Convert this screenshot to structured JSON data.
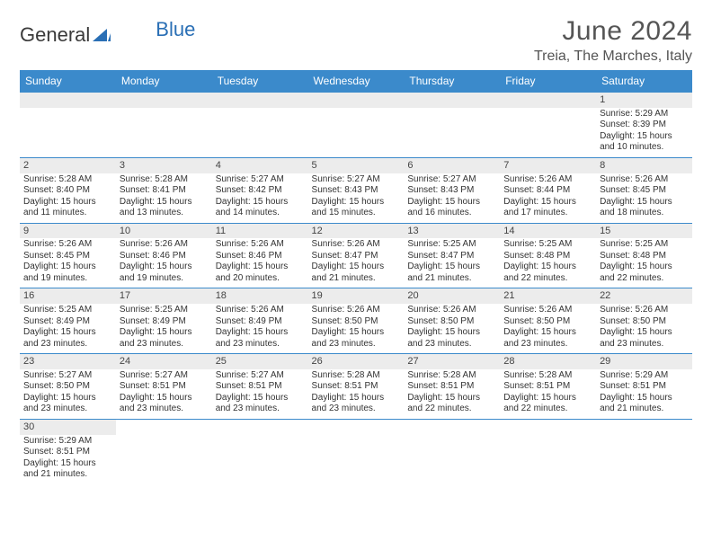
{
  "brand": {
    "general": "General",
    "blue": "Blue"
  },
  "title": "June 2024",
  "location": "Treia, The Marches, Italy",
  "colors": {
    "header_bg": "#3b8acb",
    "header_text": "#ffffff",
    "daynum_bg": "#ececec",
    "text": "#333333",
    "brand_gray": "#3a3a3a",
    "brand_blue": "#2a6fb5"
  },
  "weekdays": [
    "Sunday",
    "Monday",
    "Tuesday",
    "Wednesday",
    "Thursday",
    "Friday",
    "Saturday"
  ],
  "weeks": [
    [
      null,
      null,
      null,
      null,
      null,
      null,
      {
        "n": "1",
        "rise": "5:29 AM",
        "set": "8:39 PM",
        "dl": "15 hours and 10 minutes."
      }
    ],
    [
      {
        "n": "2",
        "rise": "5:28 AM",
        "set": "8:40 PM",
        "dl": "15 hours and 11 minutes."
      },
      {
        "n": "3",
        "rise": "5:28 AM",
        "set": "8:41 PM",
        "dl": "15 hours and 13 minutes."
      },
      {
        "n": "4",
        "rise": "5:27 AM",
        "set": "8:42 PM",
        "dl": "15 hours and 14 minutes."
      },
      {
        "n": "5",
        "rise": "5:27 AM",
        "set": "8:43 PM",
        "dl": "15 hours and 15 minutes."
      },
      {
        "n": "6",
        "rise": "5:27 AM",
        "set": "8:43 PM",
        "dl": "15 hours and 16 minutes."
      },
      {
        "n": "7",
        "rise": "5:26 AM",
        "set": "8:44 PM",
        "dl": "15 hours and 17 minutes."
      },
      {
        "n": "8",
        "rise": "5:26 AM",
        "set": "8:45 PM",
        "dl": "15 hours and 18 minutes."
      }
    ],
    [
      {
        "n": "9",
        "rise": "5:26 AM",
        "set": "8:45 PM",
        "dl": "15 hours and 19 minutes."
      },
      {
        "n": "10",
        "rise": "5:26 AM",
        "set": "8:46 PM",
        "dl": "15 hours and 19 minutes."
      },
      {
        "n": "11",
        "rise": "5:26 AM",
        "set": "8:46 PM",
        "dl": "15 hours and 20 minutes."
      },
      {
        "n": "12",
        "rise": "5:26 AM",
        "set": "8:47 PM",
        "dl": "15 hours and 21 minutes."
      },
      {
        "n": "13",
        "rise": "5:25 AM",
        "set": "8:47 PM",
        "dl": "15 hours and 21 minutes."
      },
      {
        "n": "14",
        "rise": "5:25 AM",
        "set": "8:48 PM",
        "dl": "15 hours and 22 minutes."
      },
      {
        "n": "15",
        "rise": "5:25 AM",
        "set": "8:48 PM",
        "dl": "15 hours and 22 minutes."
      }
    ],
    [
      {
        "n": "16",
        "rise": "5:25 AM",
        "set": "8:49 PM",
        "dl": "15 hours and 23 minutes."
      },
      {
        "n": "17",
        "rise": "5:25 AM",
        "set": "8:49 PM",
        "dl": "15 hours and 23 minutes."
      },
      {
        "n": "18",
        "rise": "5:26 AM",
        "set": "8:49 PM",
        "dl": "15 hours and 23 minutes."
      },
      {
        "n": "19",
        "rise": "5:26 AM",
        "set": "8:50 PM",
        "dl": "15 hours and 23 minutes."
      },
      {
        "n": "20",
        "rise": "5:26 AM",
        "set": "8:50 PM",
        "dl": "15 hours and 23 minutes."
      },
      {
        "n": "21",
        "rise": "5:26 AM",
        "set": "8:50 PM",
        "dl": "15 hours and 23 minutes."
      },
      {
        "n": "22",
        "rise": "5:26 AM",
        "set": "8:50 PM",
        "dl": "15 hours and 23 minutes."
      }
    ],
    [
      {
        "n": "23",
        "rise": "5:27 AM",
        "set": "8:50 PM",
        "dl": "15 hours and 23 minutes."
      },
      {
        "n": "24",
        "rise": "5:27 AM",
        "set": "8:51 PM",
        "dl": "15 hours and 23 minutes."
      },
      {
        "n": "25",
        "rise": "5:27 AM",
        "set": "8:51 PM",
        "dl": "15 hours and 23 minutes."
      },
      {
        "n": "26",
        "rise": "5:28 AM",
        "set": "8:51 PM",
        "dl": "15 hours and 23 minutes."
      },
      {
        "n": "27",
        "rise": "5:28 AM",
        "set": "8:51 PM",
        "dl": "15 hours and 22 minutes."
      },
      {
        "n": "28",
        "rise": "5:28 AM",
        "set": "8:51 PM",
        "dl": "15 hours and 22 minutes."
      },
      {
        "n": "29",
        "rise": "5:29 AM",
        "set": "8:51 PM",
        "dl": "15 hours and 21 minutes."
      }
    ],
    [
      {
        "n": "30",
        "rise": "5:29 AM",
        "set": "8:51 PM",
        "dl": "15 hours and 21 minutes."
      },
      null,
      null,
      null,
      null,
      null,
      null
    ]
  ],
  "labels": {
    "sunrise": "Sunrise:",
    "sunset": "Sunset:",
    "daylight": "Daylight:"
  }
}
